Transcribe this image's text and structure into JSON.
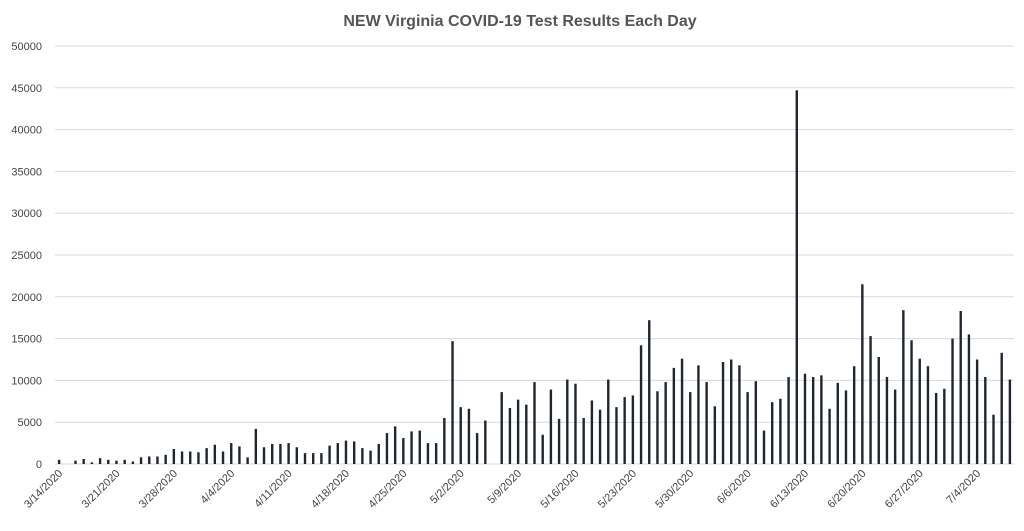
{
  "chart_data": {
    "type": "bar",
    "title": "NEW Virginia COVID-19 Test Results Each Day",
    "xlabel": "",
    "ylabel": "",
    "ylim": [
      0,
      50000
    ],
    "yticks": [
      0,
      5000,
      10000,
      15000,
      20000,
      25000,
      30000,
      35000,
      40000,
      45000,
      50000
    ],
    "grid": true,
    "x_tick_labels": [
      "3/14/2020",
      "3/21/2020",
      "3/28/2020",
      "4/4/2020",
      "4/11/2020",
      "4/18/2020",
      "4/25/2020",
      "5/2/2020",
      "5/9/2020",
      "5/16/2020",
      "5/23/2020",
      "5/30/2020",
      "6/6/2020",
      "6/13/2020",
      "6/20/2020",
      "6/27/2020",
      "7/4/2020"
    ],
    "categories": [
      "3/14/2020",
      "3/15/2020",
      "3/16/2020",
      "3/17/2020",
      "3/18/2020",
      "3/19/2020",
      "3/20/2020",
      "3/21/2020",
      "3/22/2020",
      "3/23/2020",
      "3/24/2020",
      "3/25/2020",
      "3/26/2020",
      "3/27/2020",
      "3/28/2020",
      "3/29/2020",
      "3/30/2020",
      "3/31/2020",
      "4/1/2020",
      "4/2/2020",
      "4/3/2020",
      "4/4/2020",
      "4/5/2020",
      "4/6/2020",
      "4/7/2020",
      "4/8/2020",
      "4/9/2020",
      "4/10/2020",
      "4/11/2020",
      "4/12/2020",
      "4/13/2020",
      "4/14/2020",
      "4/15/2020",
      "4/16/2020",
      "4/17/2020",
      "4/18/2020",
      "4/19/2020",
      "4/20/2020",
      "4/21/2020",
      "4/22/2020",
      "4/23/2020",
      "4/24/2020",
      "4/25/2020",
      "4/26/2020",
      "4/27/2020",
      "4/28/2020",
      "4/29/2020",
      "4/30/2020",
      "5/1/2020",
      "5/2/2020",
      "5/3/2020",
      "5/4/2020",
      "5/5/2020",
      "5/6/2020",
      "5/7/2020",
      "5/8/2020",
      "5/9/2020",
      "5/10/2020",
      "5/11/2020",
      "5/12/2020",
      "5/13/2020",
      "5/14/2020",
      "5/15/2020",
      "5/16/2020",
      "5/17/2020",
      "5/18/2020",
      "5/19/2020",
      "5/20/2020",
      "5/21/2020",
      "5/22/2020",
      "5/23/2020",
      "5/24/2020",
      "5/25/2020",
      "5/26/2020",
      "5/27/2020",
      "5/28/2020",
      "5/29/2020",
      "5/30/2020",
      "5/31/2020",
      "6/1/2020",
      "6/2/2020",
      "6/3/2020",
      "6/4/2020",
      "6/5/2020",
      "6/6/2020",
      "6/7/2020",
      "6/8/2020",
      "6/9/2020",
      "6/10/2020",
      "6/11/2020",
      "6/12/2020",
      "6/13/2020",
      "6/14/2020",
      "6/15/2020",
      "6/16/2020",
      "6/17/2020",
      "6/18/2020",
      "6/19/2020",
      "6/20/2020",
      "6/21/2020",
      "6/22/2020",
      "6/23/2020",
      "6/24/2020",
      "6/25/2020",
      "6/26/2020",
      "6/27/2020",
      "6/28/2020",
      "6/29/2020",
      "6/30/2020",
      "7/1/2020",
      "7/2/2020",
      "7/3/2020",
      "7/4/2020",
      "7/5/2020",
      "7/6/2020",
      "7/7/2020",
      "7/8/2020"
    ],
    "values": [
      500,
      0,
      400,
      600,
      200,
      700,
      500,
      400,
      500,
      300,
      800,
      900,
      900,
      1100,
      1800,
      1500,
      1500,
      1400,
      1900,
      2300,
      1500,
      2500,
      2100,
      800,
      4200,
      2000,
      2400,
      2400,
      2500,
      2000,
      1300,
      1300,
      1300,
      2200,
      2500,
      2800,
      2700,
      1900,
      1600,
      2400,
      3700,
      4500,
      3100,
      3900,
      4000,
      2500,
      2500,
      5500,
      14700,
      6800,
      6600,
      3700,
      5200,
      0,
      8600,
      6700,
      7700,
      7100,
      9800,
      3500,
      8900,
      5400,
      10100,
      9600,
      5500,
      7600,
      6500,
      10100,
      6800,
      8000,
      8200,
      14200,
      17200,
      8700,
      9800,
      11500,
      12600,
      8600,
      11800,
      9800,
      6900,
      12200,
      12500,
      11800,
      8600,
      9900,
      4000,
      7400,
      7800,
      10400,
      44700,
      10800,
      10400,
      10600,
      6600,
      9700,
      8800,
      11700,
      21500,
      15300,
      12800,
      10400,
      8900,
      18400,
      14800,
      12600,
      11700,
      8500,
      9000,
      15000,
      18300,
      15500,
      12500,
      10400,
      5900,
      13300,
      10100
    ]
  }
}
